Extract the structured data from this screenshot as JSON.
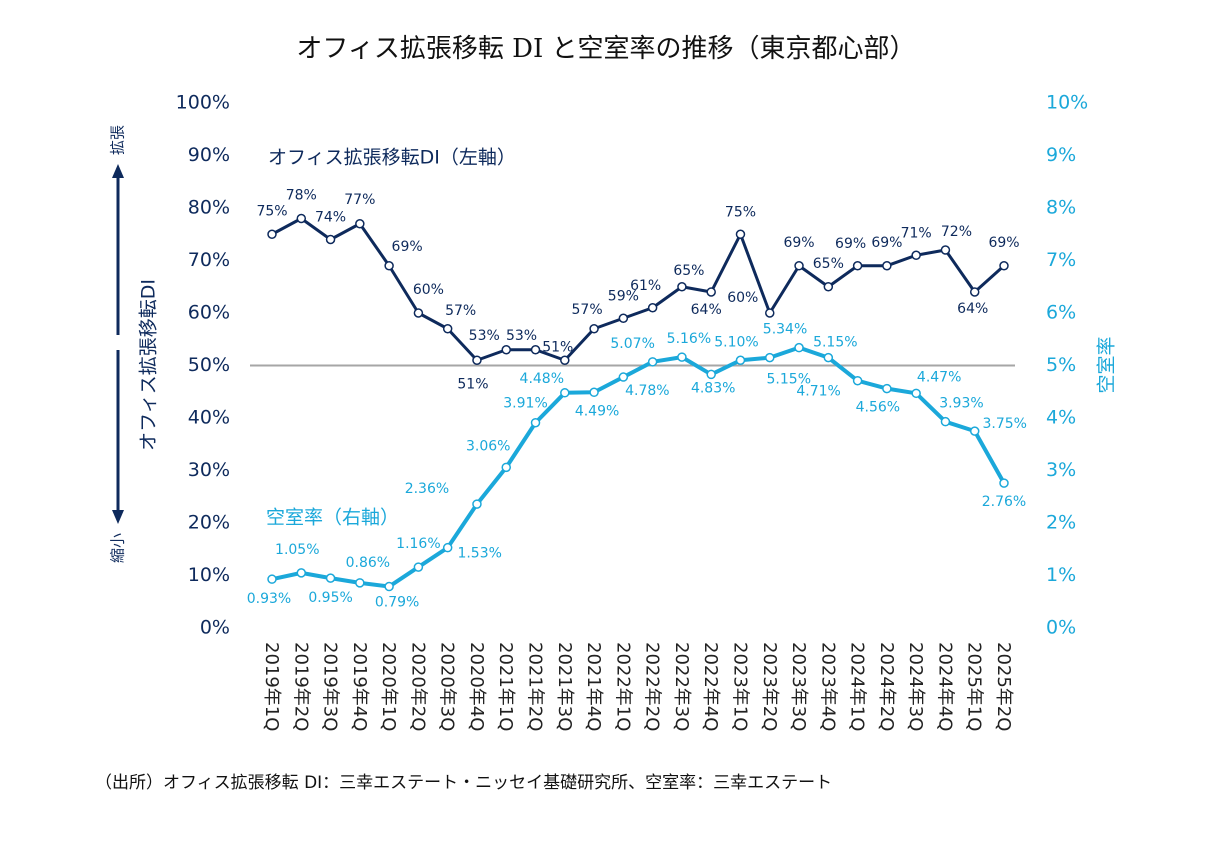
{
  "chart_data": {
    "type": "line",
    "title": "オフィス拡張移転 DI と空室率の推移（東京都心部）",
    "ylabel": "オフィス拡張移転DI",
    "y2label": "空室率",
    "y_up_label": "拡張",
    "y_down_label": "縮小",
    "source": "（出所）オフィス拡張移転 DI：三幸エステート・ニッセイ基礎研究所、空室率：三幸エステート",
    "categories": [
      "2019年1Q",
      "2019年2Q",
      "2019年3Q",
      "2019年4Q",
      "2020年1Q",
      "2020年2Q",
      "2020年3Q",
      "2020年4Q",
      "2021年1Q",
      "2021年2Q",
      "2021年3Q",
      "2021年4Q",
      "2022年1Q",
      "2022年2Q",
      "2022年3Q",
      "2022年4Q",
      "2023年1Q",
      "2023年2Q",
      "2023年3Q",
      "2023年4Q",
      "2024年1Q",
      "2024年2Q",
      "2024年3Q",
      "2024年4Q",
      "2025年1Q",
      "2025年2Q"
    ],
    "series": [
      {
        "name": "オフィス拡張移転DI（左軸）",
        "color": "#0e2a5c",
        "axis": "y",
        "values": [
          75,
          78,
          74,
          77,
          69,
          60,
          57,
          51,
          53,
          53,
          51,
          57,
          59,
          61,
          65,
          64,
          75,
          60,
          69,
          65,
          69,
          69,
          71,
          72,
          64,
          69
        ],
        "value_labels": [
          "75%",
          "78%",
          "74%",
          "77%",
          "69%",
          "60%",
          "57%",
          "51%",
          "53%",
          "53%",
          "51%",
          "57%",
          "59%",
          "61%",
          "65%",
          "64%",
          "75%",
          "60%",
          "69%",
          "65%",
          "69%",
          "69%",
          "71%",
          "72%",
          "64%",
          "69%"
        ]
      },
      {
        "name": "空室率（右軸）",
        "color": "#1ba8da",
        "axis": "y2",
        "values": [
          0.93,
          1.05,
          0.95,
          0.86,
          0.79,
          1.16,
          1.53,
          2.36,
          3.06,
          3.91,
          4.48,
          4.49,
          4.78,
          5.07,
          5.16,
          4.83,
          5.1,
          5.15,
          5.34,
          5.15,
          4.71,
          4.56,
          4.47,
          3.93,
          3.75,
          2.76
        ],
        "value_labels": [
          "0.93%",
          "1.05%",
          "0.95%",
          "0.86%",
          "0.79%",
          "1.16%",
          "1.53%",
          "2.36%",
          "3.06%",
          "3.91%",
          "4.48%",
          "4.49%",
          "4.78%",
          "5.07%",
          "5.16%",
          "4.83%",
          "5.10%",
          "5.15%",
          "5.34%",
          "5.15%",
          "4.71%",
          "4.56%",
          "4.47%",
          "3.93%",
          "3.75%",
          "2.76%"
        ]
      }
    ],
    "ylim": [
      0,
      100
    ],
    "yticks": [
      {
        "value": 0,
        "label": "0%"
      },
      {
        "value": 10,
        "label": "10%"
      },
      {
        "value": 20,
        "label": "20%"
      },
      {
        "value": 30,
        "label": "30%"
      },
      {
        "value": 40,
        "label": "40%"
      },
      {
        "value": 50,
        "label": "50%"
      },
      {
        "value": 60,
        "label": "60%"
      },
      {
        "value": 70,
        "label": "70%"
      },
      {
        "value": 80,
        "label": "80%"
      },
      {
        "value": 90,
        "label": "90%"
      },
      {
        "value": 100,
        "label": "100%"
      }
    ],
    "y2lim": [
      0,
      10
    ],
    "y2ticks": [
      {
        "value": 0,
        "label": "0%"
      },
      {
        "value": 1,
        "label": "1%"
      },
      {
        "value": 2,
        "label": "2%"
      },
      {
        "value": 3,
        "label": "3%"
      },
      {
        "value": 4,
        "label": "4%"
      },
      {
        "value": 5,
        "label": "5%"
      },
      {
        "value": 6,
        "label": "6%"
      },
      {
        "value": 7,
        "label": "7%"
      },
      {
        "value": 8,
        "label": "8%"
      },
      {
        "value": 9,
        "label": "9%"
      },
      {
        "value": 10,
        "label": "10%"
      }
    ],
    "reference_line": 50
  }
}
